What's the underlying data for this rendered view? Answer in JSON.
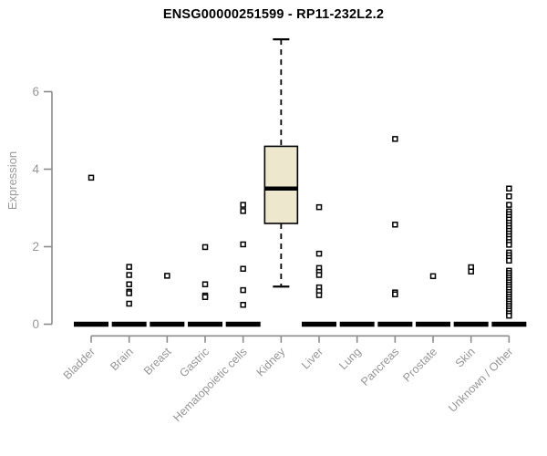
{
  "chart_data": {
    "type": "boxplot",
    "title": "ENSG00000251599 - RP11-232L2.2",
    "xlabel": "",
    "ylabel": "Expression",
    "yticks": [
      0,
      2,
      4,
      6
    ],
    "ylim": [
      0,
      7.6
    ],
    "grid": false,
    "legend": "none",
    "categories": [
      "Bladder",
      "Brain",
      "Breast",
      "Gastric",
      "Hematopoietic cells",
      "Kidney",
      "Liver",
      "Lung",
      "Pancreas",
      "Prostate",
      "Skin",
      "Unknown / Other"
    ],
    "boxes": [
      {
        "category": "Bladder",
        "q1": 0,
        "median": 0,
        "q3": 0,
        "whisker_low": 0,
        "whisker_high": 0,
        "outliers": [
          3.78
        ]
      },
      {
        "category": "Brain",
        "q1": 0,
        "median": 0,
        "q3": 0,
        "whisker_low": 0,
        "whisker_high": 0,
        "outliers": [
          1.48,
          1.27,
          1.03,
          0.84,
          0.8,
          0.53
        ]
      },
      {
        "category": "Breast",
        "q1": 0,
        "median": 0,
        "q3": 0,
        "whisker_low": 0,
        "whisker_high": 0,
        "outliers": [
          1.25
        ]
      },
      {
        "category": "Gastric",
        "q1": 0,
        "median": 0,
        "q3": 0,
        "whisker_low": 0,
        "whisker_high": 0,
        "outliers": [
          1.99,
          1.03,
          0.74,
          0.7
        ]
      },
      {
        "category": "Hematopoietic cells",
        "q1": 0,
        "median": 0,
        "q3": 0,
        "whisker_low": 0,
        "whisker_high": 0,
        "outliers": [
          3.08,
          2.92,
          2.06,
          1.43,
          0.88,
          0.5
        ]
      },
      {
        "category": "Kidney",
        "q1": 2.6,
        "median": 3.5,
        "q3": 4.59,
        "whisker_low": 0.97,
        "whisker_high": 7.35,
        "outliers": []
      },
      {
        "category": "Liver",
        "q1": 0,
        "median": 0,
        "q3": 0,
        "whisker_low": 0,
        "whisker_high": 0,
        "outliers": [
          3.02,
          1.82,
          1.45,
          1.35,
          1.27,
          0.95,
          0.85,
          0.75
        ]
      },
      {
        "category": "Lung",
        "q1": 0,
        "median": 0,
        "q3": 0,
        "whisker_low": 0,
        "whisker_high": 0,
        "outliers": []
      },
      {
        "category": "Pancreas",
        "q1": 0,
        "median": 0,
        "q3": 0,
        "whisker_low": 0,
        "whisker_high": 0,
        "outliers": [
          4.78,
          2.57,
          0.82,
          0.77
        ]
      },
      {
        "category": "Prostate",
        "q1": 0,
        "median": 0,
        "q3": 0,
        "whisker_low": 0,
        "whisker_high": 0,
        "outliers": [
          1.24
        ]
      },
      {
        "category": "Skin",
        "q1": 0,
        "median": 0,
        "q3": 0,
        "whisker_low": 0,
        "whisker_high": 0,
        "outliers": [
          1.47,
          1.36
        ]
      },
      {
        "category": "Unknown / Other",
        "q1": 0,
        "median": 0,
        "q3": 0,
        "whisker_low": 0,
        "whisker_high": 0,
        "outliers": [
          3.5,
          3.3,
          3.08,
          2.91,
          2.84,
          2.77,
          2.7,
          2.62,
          2.55,
          2.48,
          2.41,
          2.34,
          2.27,
          2.2,
          2.12,
          2.05,
          1.85,
          1.78,
          1.71,
          1.64,
          1.38,
          1.32,
          1.26,
          1.2,
          1.14,
          1.08,
          1.02,
          0.96,
          0.9,
          0.83,
          0.77,
          0.71,
          0.65,
          0.59,
          0.53,
          0.47,
          0.41,
          0.35,
          0.28,
          0.22
        ]
      }
    ],
    "colors": {
      "box_fill": "#ECE7CD",
      "box_border": "#000000",
      "median": "#000000",
      "whisker": "#000000",
      "outlier_stroke": "#000000",
      "outlier_fill": "#ffffff",
      "collapsed_bar": "#000000",
      "axis": "#8c8c8c",
      "tick_label": "#969696",
      "title": "#000000",
      "background": "#ffffff"
    }
  }
}
